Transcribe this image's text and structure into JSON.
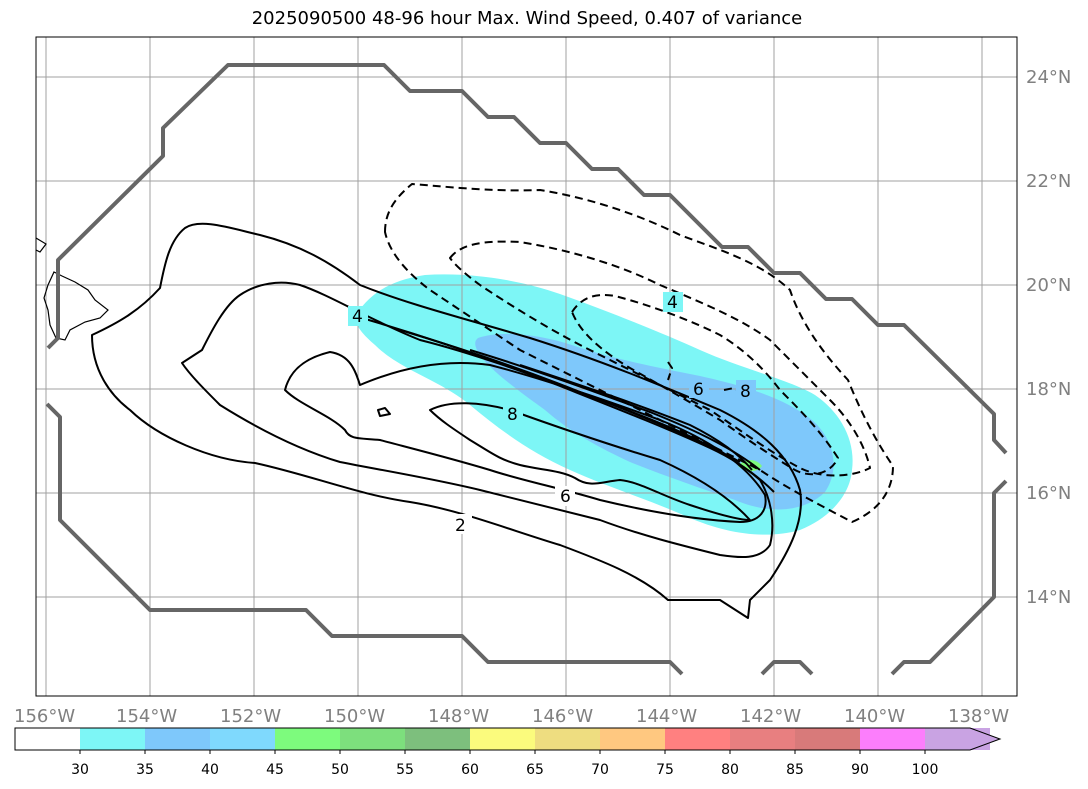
{
  "title": "2025090500 48-96 hour Max. Wind Speed, 0.407 of variance",
  "map": {
    "lon_ticks": [
      "156°W",
      "154°W",
      "152°W",
      "150°W",
      "148°W",
      "146°W",
      "144°W",
      "142°W",
      "140°W",
      "138°W"
    ],
    "lat_ticks": [
      "24°N",
      "22°N",
      "20°N",
      "18°N",
      "16°N",
      "14°N"
    ],
    "grid": true,
    "contour_labels": {
      "solid": [
        "4",
        "8",
        "6",
        "2"
      ],
      "dashed": [
        "4",
        "6",
        "8"
      ]
    }
  },
  "colorbar": {
    "levels": [
      "30",
      "35",
      "40",
      "45",
      "50",
      "55",
      "60",
      "65",
      "70",
      "75",
      "80",
      "85",
      "90",
      "100"
    ],
    "colors": [
      "#ffffff",
      "#7df6f6",
      "#7ec8fb",
      "#7fd9fd",
      "#7dfb7d",
      "#7ddf7d",
      "#7dbf7d",
      "#fbfb7d",
      "#eedd80",
      "#ffc880",
      "#ff8080",
      "#e87f80",
      "#d87a7a",
      "#fc7efc",
      "#c9a3e3"
    ],
    "extend": "max"
  }
}
